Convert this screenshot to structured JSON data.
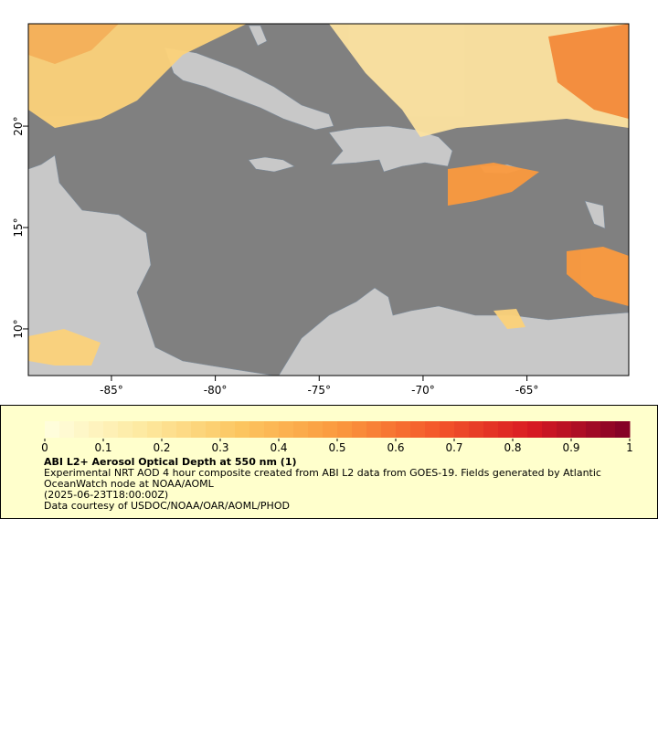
{
  "map": {
    "xlim": [
      -89,
      -60.1
    ],
    "ylim": [
      7.7,
      25.05
    ],
    "xticks": [
      {
        "value": -85,
        "label": "-85°"
      },
      {
        "value": -80,
        "label": "-80°"
      },
      {
        "value": -75,
        "label": "-75°"
      },
      {
        "value": -70,
        "label": "-70°"
      },
      {
        "value": -65,
        "label": "-65°"
      }
    ],
    "yticks": [
      {
        "value": 10,
        "label": "10°"
      },
      {
        "value": 15,
        "label": "15°"
      },
      {
        "value": 20,
        "label": "20°"
      }
    ],
    "ocean_color": "#808080",
    "land_color": "#c8c8c8"
  },
  "colorbar": {
    "lim": [
      0,
      1
    ],
    "ticks": [
      0,
      0.1,
      0.2,
      0.3,
      0.4,
      0.5,
      0.6,
      0.7,
      0.8,
      0.9,
      1
    ],
    "colormap": [
      "#ffffe0",
      "#fde9a0",
      "#fcc660",
      "#fb9a3e",
      "#f4582a",
      "#d81a22",
      "#7f0026"
    ]
  },
  "legend": {
    "title": "ABI L2+ Aerosol Optical Depth at 550 nm (1)",
    "description": "Experimental NRT AOD 4 hour composite created from ABI L2 data from GOES-19. Fields generated by Atlantic OceanWatch node at NOAA/AOML",
    "time": "(2025-06-23T18:00:00Z)",
    "credit": "Data courtesy of USDOC/NOAA/OAR/AOML/PHOD"
  }
}
